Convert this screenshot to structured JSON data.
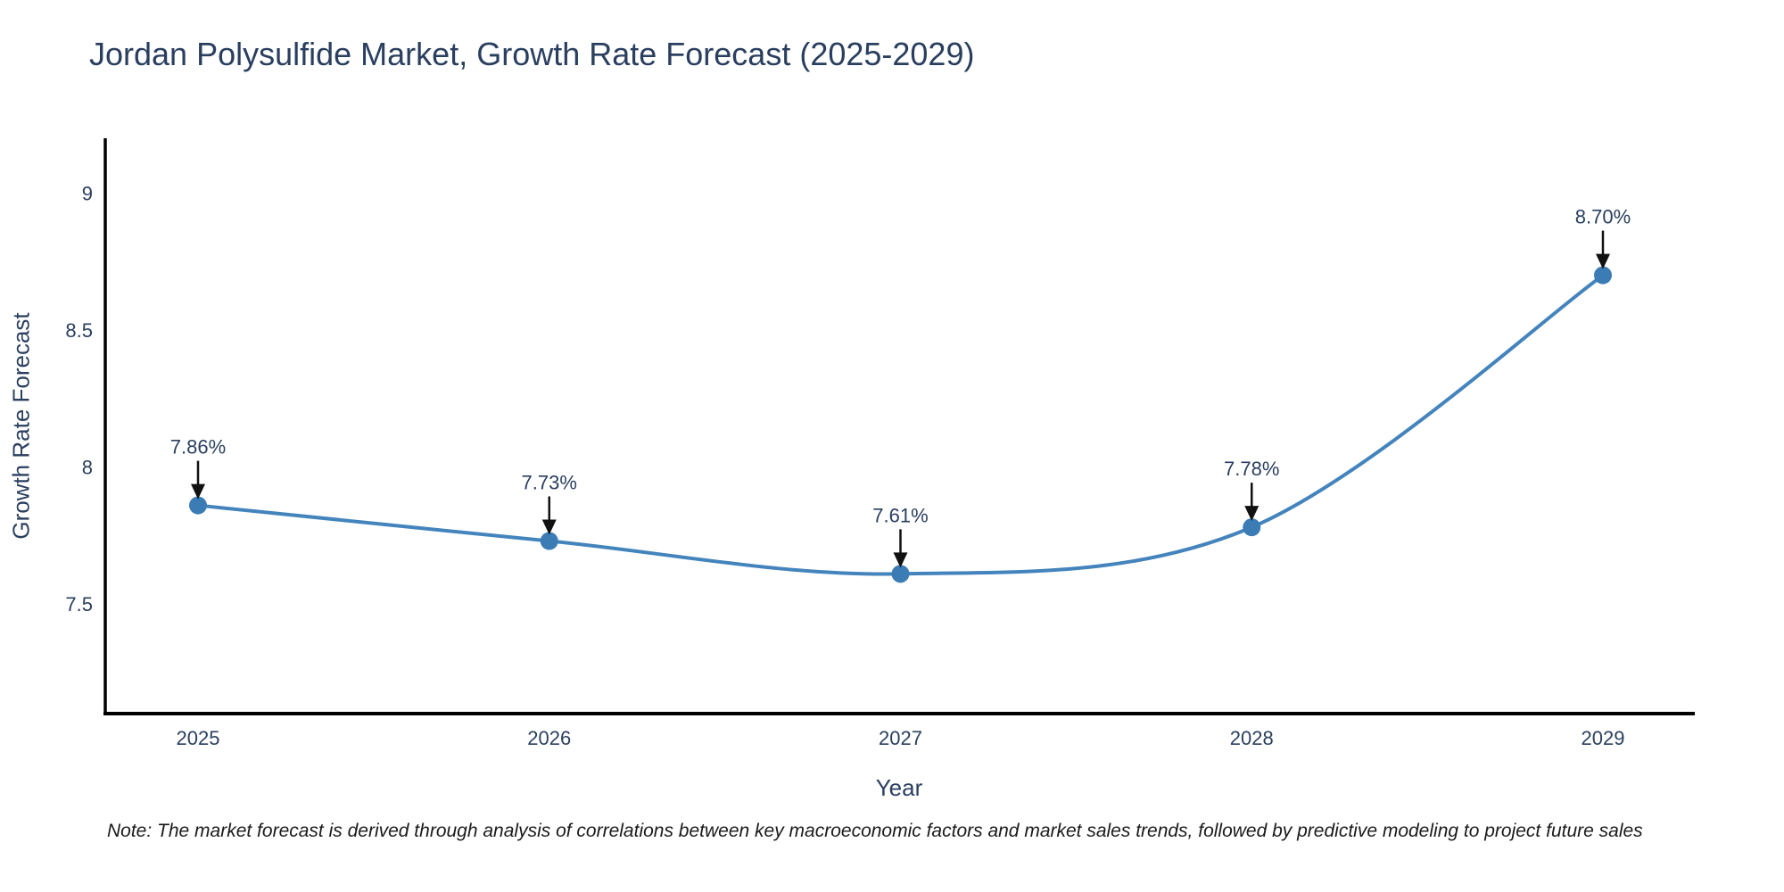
{
  "note": "Note: The market forecast is derived through analysis of correlations between key macroeconomic factors and market sales trends, followed by predictive modeling to project future sales",
  "chart_data": {
    "type": "line",
    "title": "Jordan Polysulfide Market, Growth Rate Forecast (2025-2029)",
    "xlabel": "Year",
    "ylabel": "Growth Rate Forecast",
    "categories": [
      "2025",
      "2026",
      "2027",
      "2028",
      "2029"
    ],
    "series": [
      {
        "name": "Growth Rate Forecast",
        "values": [
          7.86,
          7.73,
          7.61,
          7.78,
          8.7
        ]
      }
    ],
    "point_labels": [
      "7.86%",
      "7.73%",
      "7.61%",
      "7.78%",
      "8.70%"
    ],
    "yticks": [
      7.5,
      8,
      8.5,
      9
    ],
    "ylim": [
      7.1,
      9.2
    ],
    "grid": false,
    "legend": "none",
    "line_shape": "spline",
    "annotations": "arrow-labels",
    "colors": {
      "line": "#4484bd",
      "marker": "#3c7cb5",
      "axis": "#000000",
      "tick_text": "#2a3f5f",
      "annotation_text": "#2a3f5f",
      "arrow": "#111111",
      "title_text": "#2a3f5f",
      "background": "#ffffff"
    }
  }
}
